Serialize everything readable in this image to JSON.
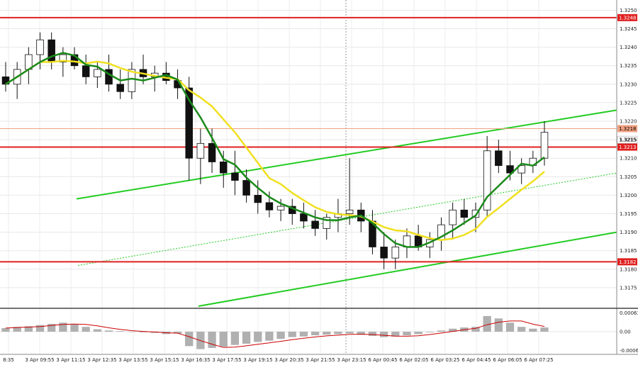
{
  "chart_data": {
    "type": "candlestick",
    "symbol_panel": {
      "y_ticks": [
        "1.3250",
        "1.3245",
        "1.3240",
        "1.3235",
        "1.3230",
        "1.3225",
        "1.3220",
        "1.3215",
        "1.3210",
        "1.3205",
        "1.3200",
        "1.3195",
        "1.3190",
        "1.3185",
        "1.3180",
        "1.3175"
      ],
      "ylim": [
        1.317,
        1.3252
      ],
      "levels": [
        {
          "value": 1.3248,
          "label": "1.3248",
          "color": "#e02020"
        },
        {
          "value": 1.3213,
          "label": "1.3213",
          "color": "#e02020"
        },
        {
          "value": 1.3182,
          "label": "1.3182",
          "color": "#e02020"
        }
      ],
      "current_price": {
        "value": 1.3218,
        "label": "1.3218",
        "color": "#f0a080"
      },
      "last_price": {
        "value": 1.3215,
        "label": "1.3215"
      },
      "ma_fast_color": "#1a8a1a",
      "ma_slow_color": "#f0e020",
      "channel_color": "#22cc22",
      "candles": [
        [
          1.3232,
          1.3236,
          1.3228,
          1.323
        ],
        [
          1.323,
          1.3236,
          1.3226,
          1.3234
        ],
        [
          1.3234,
          1.324,
          1.323,
          1.3238
        ],
        [
          1.3238,
          1.3244,
          1.3234,
          1.3242
        ],
        [
          1.3242,
          1.3244,
          1.3234,
          1.3236
        ],
        [
          1.3236,
          1.324,
          1.3232,
          1.3238
        ],
        [
          1.3238,
          1.324,
          1.3234,
          1.3235
        ],
        [
          1.3235,
          1.3238,
          1.323,
          1.3232
        ],
        [
          1.3232,
          1.3236,
          1.3229,
          1.3234
        ],
        [
          1.3234,
          1.3238,
          1.3228,
          1.323
        ],
        [
          1.323,
          1.3234,
          1.3226,
          1.3228
        ],
        [
          1.3228,
          1.3236,
          1.3226,
          1.3234
        ],
        [
          1.3234,
          1.3238,
          1.323,
          1.3232
        ],
        [
          1.3232,
          1.3235,
          1.3228,
          1.3233
        ],
        [
          1.3233,
          1.3236,
          1.323,
          1.3231
        ],
        [
          1.3231,
          1.3234,
          1.3226,
          1.3229
        ],
        [
          1.3229,
          1.3232,
          1.3204,
          1.321
        ],
        [
          1.321,
          1.3218,
          1.3203,
          1.3214
        ],
        [
          1.3214,
          1.3218,
          1.3206,
          1.3209
        ],
        [
          1.3209,
          1.3212,
          1.3202,
          1.3206
        ],
        [
          1.3206,
          1.3212,
          1.32,
          1.3204
        ],
        [
          1.3204,
          1.3207,
          1.3198,
          1.32
        ],
        [
          1.32,
          1.3204,
          1.3195,
          1.3198
        ],
        [
          1.3198,
          1.3201,
          1.3194,
          1.3196
        ],
        [
          1.3196,
          1.3199,
          1.3193,
          1.3197
        ],
        [
          1.3197,
          1.3199,
          1.3192,
          1.3195
        ],
        [
          1.3195,
          1.3198,
          1.3191,
          1.3193
        ],
        [
          1.3193,
          1.3196,
          1.3189,
          1.3191
        ],
        [
          1.3191,
          1.3195,
          1.3188,
          1.3194
        ],
        [
          1.3194,
          1.3199,
          1.319,
          1.3195
        ],
        [
          1.3195,
          1.321,
          1.3192,
          1.3196
        ],
        [
          1.3196,
          1.3198,
          1.319,
          1.3193
        ],
        [
          1.3193,
          1.3196,
          1.3184,
          1.3186
        ],
        [
          1.3186,
          1.319,
          1.318,
          1.3183
        ],
        [
          1.3183,
          1.3188,
          1.318,
          1.3186
        ],
        [
          1.3186,
          1.3191,
          1.3183,
          1.3189
        ],
        [
          1.3189,
          1.3192,
          1.3185,
          1.3186
        ],
        [
          1.3186,
          1.319,
          1.3183,
          1.3188
        ],
        [
          1.3188,
          1.3194,
          1.3185,
          1.3192
        ],
        [
          1.3192,
          1.3198,
          1.3188,
          1.3196
        ],
        [
          1.3196,
          1.3199,
          1.3192,
          1.3194
        ],
        [
          1.3194,
          1.3198,
          1.319,
          1.3196
        ],
        [
          1.3196,
          1.3216,
          1.3194,
          1.3212
        ],
        [
          1.3212,
          1.3215,
          1.3206,
          1.3208
        ],
        [
          1.3208,
          1.3212,
          1.3204,
          1.3206
        ],
        [
          1.3206,
          1.321,
          1.3203,
          1.3208
        ],
        [
          1.3208,
          1.3212,
          1.3206,
          1.321
        ],
        [
          1.321,
          1.322,
          1.3208,
          1.3217
        ]
      ]
    },
    "oscillator_panel": {
      "y_ticks": [
        "0.00063",
        "0.00",
        "-0.00062"
      ],
      "ylim": [
        -0.00066,
        0.00066
      ],
      "histogram_color": "#b0b0b0",
      "signal_color": "#cc0000",
      "values": [
        0.00012,
        0.00016,
        0.00018,
        0.00022,
        0.00026,
        0.0003,
        0.00024,
        0.00016,
        8e-05,
        4e-05,
        2e-05,
        0.0,
        -2e-05,
        -4e-05,
        -8e-05,
        -6e-05,
        -0.00048,
        -0.00058,
        -0.00054,
        -0.0005,
        -0.00044,
        -0.0004,
        -0.00034,
        -0.0003,
        -0.00024,
        -0.00018,
        -0.00016,
        -0.00012,
        -0.0001,
        -8e-05,
        -6e-05,
        -0.0001,
        -0.00014,
        -0.00018,
        -0.00016,
        -0.00012,
        -8e-05,
        -2e-05,
        4e-05,
        0.0001,
        0.00014,
        0.00016,
        0.00052,
        0.00044,
        0.0003,
        0.00016,
        0.0001,
        0.00014
      ]
    },
    "x_ticks": [
      "8:35",
      "3 Apr 09:55",
      "3 Apr 11:15",
      "3 Apr 12:35",
      "3 Apr 13:55",
      "3 Apr 15:15",
      "3 Apr 16:35",
      "3 Apr 17:55",
      "3 Apr 19:15",
      "3 Apr 20:35",
      "3 Apr 21:55",
      "3 Apr 23:15",
      "6 Apr 00:45",
      "6 Apr 02:05",
      "6 Apr 03:25",
      "6 Apr 04:45",
      "6 Apr 06:05",
      "6 Apr 07:25"
    ]
  }
}
